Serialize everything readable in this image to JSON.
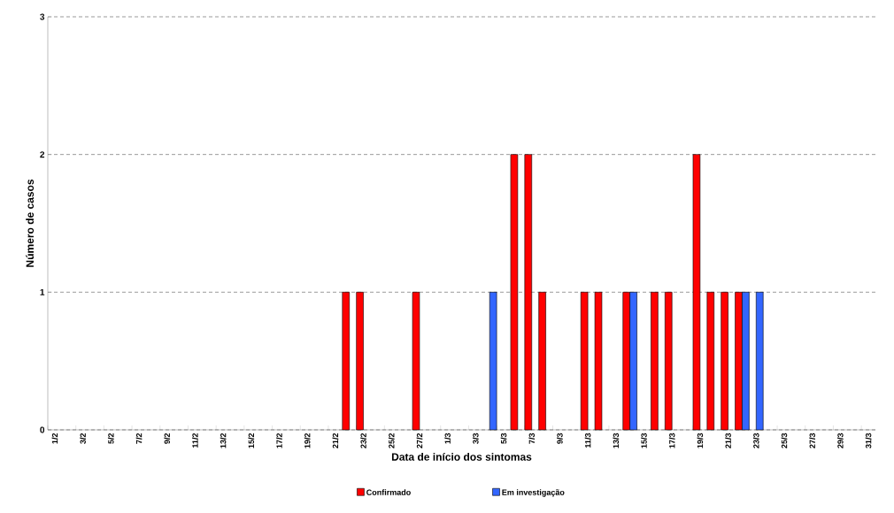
{
  "chart_data": {
    "type": "bar",
    "xlabel": "Data de início dos sintomas",
    "ylabel": "Número de casos",
    "categories": [
      "1/2",
      null,
      "3/2",
      null,
      "5/2",
      null,
      "7/2",
      null,
      "9/2",
      null,
      "11/2",
      null,
      "13/2",
      null,
      "15/2",
      null,
      "17/2",
      null,
      "19/2",
      null,
      "21/2",
      null,
      "23/2",
      null,
      "25/2",
      null,
      "27/2",
      null,
      "1/3",
      null,
      "3/3",
      null,
      "5/3",
      null,
      "7/3",
      null,
      "9/3",
      null,
      "11/3",
      null,
      "13/3",
      null,
      "15/3",
      null,
      "17/3",
      null,
      "19/3",
      null,
      "21/3",
      null,
      "23/3",
      null,
      "25/3",
      null,
      "27/3",
      null,
      "29/3",
      null,
      "31/3"
    ],
    "series": [
      {
        "name": "Confirmado",
        "color": "#ff0000",
        "values": [
          null,
          null,
          null,
          null,
          null,
          null,
          null,
          null,
          null,
          null,
          null,
          null,
          null,
          null,
          null,
          null,
          null,
          null,
          null,
          null,
          null,
          1,
          1,
          null,
          null,
          null,
          1,
          null,
          null,
          null,
          null,
          null,
          null,
          2,
          2,
          1,
          null,
          null,
          1,
          1,
          null,
          1,
          null,
          1,
          1,
          null,
          2,
          1,
          1,
          1,
          null,
          null,
          null,
          null,
          null,
          null,
          null,
          null,
          null
        ]
      },
      {
        "name": "Em investigação",
        "color": "#3366ff",
        "values": [
          null,
          null,
          null,
          null,
          null,
          null,
          null,
          null,
          null,
          null,
          null,
          null,
          null,
          null,
          null,
          null,
          null,
          null,
          null,
          null,
          null,
          null,
          null,
          null,
          null,
          null,
          null,
          null,
          null,
          null,
          null,
          1,
          null,
          null,
          null,
          null,
          null,
          null,
          null,
          null,
          null,
          1,
          null,
          null,
          null,
          null,
          null,
          null,
          null,
          1,
          1,
          null,
          null,
          null,
          null,
          null,
          null,
          null,
          null
        ]
      }
    ],
    "ylim": [
      0,
      3
    ],
    "yticks": [
      0,
      1,
      2,
      3
    ],
    "grid": "y",
    "legend": "bottom"
  }
}
